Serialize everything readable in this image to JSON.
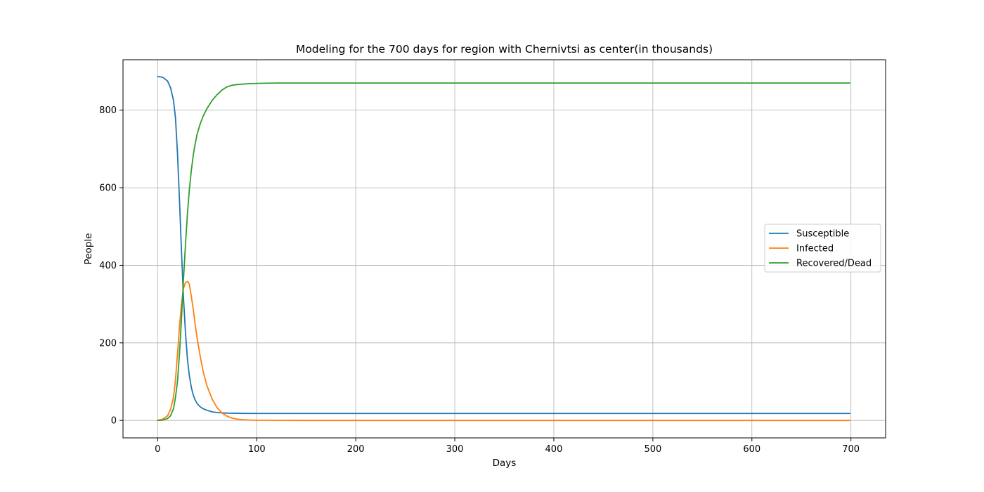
{
  "chart_data": {
    "type": "line",
    "title": "Modeling for the 700 days for region with Chernivtsi as center(in thousands)",
    "xlabel": "Days",
    "ylabel": "People",
    "xlim": [
      -35,
      735
    ],
    "ylim": [
      -45,
      930
    ],
    "xticks": [
      0,
      100,
      200,
      300,
      400,
      500,
      600,
      700
    ],
    "yticks": [
      0,
      200,
      400,
      600,
      800
    ],
    "grid": true,
    "legend_position": "center-right",
    "series": [
      {
        "name": "Susceptible",
        "color": "#1f77b4",
        "x": [
          0,
          5,
          10,
          13,
          16,
          18,
          20,
          22,
          24,
          26,
          28,
          30,
          32,
          34,
          36,
          38,
          40,
          43,
          46,
          50,
          55,
          60,
          65,
          70,
          80,
          90,
          100,
          120,
          150,
          200,
          300,
          400,
          500,
          600,
          699
        ],
        "y": [
          887,
          885,
          875,
          858,
          825,
          780,
          690,
          570,
          440,
          320,
          230,
          160,
          115,
          85,
          65,
          52,
          43,
          35,
          30,
          26,
          22,
          20.5,
          19.5,
          18.8,
          18.3,
          18.1,
          18,
          18,
          18,
          18,
          18,
          18,
          18,
          18,
          18
        ]
      },
      {
        "name": "Infected",
        "color": "#ff7f0e",
        "x": [
          0,
          5,
          10,
          13,
          16,
          18,
          20,
          22,
          24,
          26,
          28,
          30,
          31,
          32,
          34,
          36,
          38,
          40,
          43,
          46,
          50,
          55,
          60,
          65,
          70,
          75,
          80,
          90,
          100,
          120,
          150,
          200,
          300,
          400,
          500,
          600,
          699
        ],
        "y": [
          0.5,
          3,
          12,
          28,
          60,
          105,
          170,
          240,
          300,
          340,
          355,
          358,
          356,
          350,
          320,
          285,
          245,
          210,
          165,
          125,
          88,
          55,
          33,
          19,
          11,
          6,
          3.5,
          1.2,
          0.5,
          0.1,
          0,
          0,
          0,
          0,
          0,
          0,
          0
        ]
      },
      {
        "name": "Recovered/Dead",
        "color": "#2ca02c",
        "x": [
          0,
          5,
          10,
          13,
          16,
          18,
          20,
          22,
          24,
          26,
          28,
          30,
          32,
          34,
          36,
          38,
          40,
          43,
          46,
          50,
          55,
          60,
          65,
          70,
          75,
          80,
          90,
          100,
          110,
          120,
          150,
          200,
          300,
          400,
          500,
          600,
          699
        ],
        "y": [
          0,
          1,
          5,
          12,
          30,
          60,
          100,
          170,
          260,
          360,
          450,
          530,
          595,
          645,
          685,
          715,
          740,
          765,
          785,
          805,
          825,
          840,
          852,
          860,
          864,
          866,
          868,
          869,
          869.5,
          870,
          870,
          870,
          870,
          870,
          870,
          870,
          870
        ]
      }
    ]
  }
}
